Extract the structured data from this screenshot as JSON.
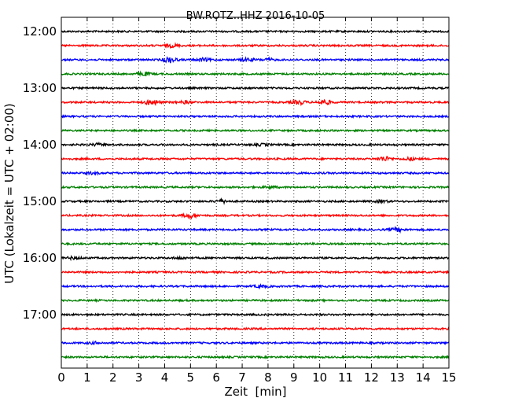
{
  "chart_data": {
    "type": "line",
    "title": "BW.ROTZ..HHZ 2016-10-05",
    "xlabel": "Zeit  [min]",
    "ylabel": "UTC (Lokalzeit = UTC + 02:00)",
    "xlim": [
      0,
      15
    ],
    "x_ticks": [
      "0",
      "1",
      "2",
      "3",
      "4",
      "5",
      "6",
      "7",
      "8",
      "9",
      "10",
      "11",
      "12",
      "13",
      "14",
      "15"
    ],
    "y_ticks": [
      "12:00",
      "13:00",
      "14:00",
      "15:00",
      "16:00",
      "17:00"
    ],
    "grid": "vertical-dotted",
    "colors": [
      "#000000",
      "#ff0000",
      "#0000ff",
      "#008000"
    ],
    "traces": [
      {
        "label": "12:00",
        "color": "#000000",
        "events": []
      },
      {
        "label": "12:15",
        "color": "#ff0000",
        "events": [
          [
            4.3,
            0.5
          ]
        ]
      },
      {
        "label": "12:30",
        "color": "#0000ff",
        "events": [
          [
            4.2,
            1.0
          ],
          [
            5.5,
            0.5
          ],
          [
            7.2,
            0.5
          ],
          [
            8.0,
            0.4
          ]
        ]
      },
      {
        "label": "12:45",
        "color": "#008000",
        "events": [
          [
            3.2,
            0.6
          ]
        ]
      },
      {
        "label": "13:00",
        "color": "#000000",
        "events": []
      },
      {
        "label": "13:15",
        "color": "#ff0000",
        "events": [
          [
            3.5,
            0.9
          ],
          [
            4.8,
            0.4
          ],
          [
            9.2,
            0.7
          ],
          [
            10.2,
            0.8
          ]
        ]
      },
      {
        "label": "13:30",
        "color": "#0000ff",
        "events": []
      },
      {
        "label": "13:45",
        "color": "#008000",
        "events": []
      },
      {
        "label": "14:00",
        "color": "#000000",
        "events": [
          [
            1.4,
            0.4
          ],
          [
            7.8,
            0.3
          ]
        ]
      },
      {
        "label": "14:15",
        "color": "#ff0000",
        "events": [
          [
            12.5,
            0.8
          ],
          [
            13.5,
            0.4
          ]
        ]
      },
      {
        "label": "14:30",
        "color": "#0000ff",
        "events": [
          [
            1.2,
            0.3
          ]
        ]
      },
      {
        "label": "14:45",
        "color": "#008000",
        "events": [
          [
            8.1,
            0.3
          ]
        ]
      },
      {
        "label": "15:00",
        "color": "#000000",
        "events": [
          [
            6.2,
            0.5
          ],
          [
            12.4,
            0.4
          ]
        ]
      },
      {
        "label": "15:15",
        "color": "#ff0000",
        "events": [
          [
            5.0,
            0.8
          ]
        ]
      },
      {
        "label": "15:30",
        "color": "#0000ff",
        "events": [
          [
            13.0,
            0.6
          ]
        ]
      },
      {
        "label": "15:45",
        "color": "#008000",
        "events": []
      },
      {
        "label": "16:00",
        "color": "#000000",
        "events": [
          [
            0.5,
            0.4
          ],
          [
            4.6,
            0.3
          ]
        ]
      },
      {
        "label": "16:15",
        "color": "#ff0000",
        "events": []
      },
      {
        "label": "16:30",
        "color": "#0000ff",
        "events": [
          [
            7.7,
            0.4
          ]
        ]
      },
      {
        "label": "16:45",
        "color": "#008000",
        "events": []
      },
      {
        "label": "17:00",
        "color": "#000000",
        "events": []
      },
      {
        "label": "17:15",
        "color": "#ff0000",
        "events": []
      },
      {
        "label": "17:30",
        "color": "#0000ff",
        "events": [
          [
            1.3,
            0.3
          ]
        ]
      },
      {
        "label": "17:45",
        "color": "#008000",
        "events": []
      }
    ]
  }
}
